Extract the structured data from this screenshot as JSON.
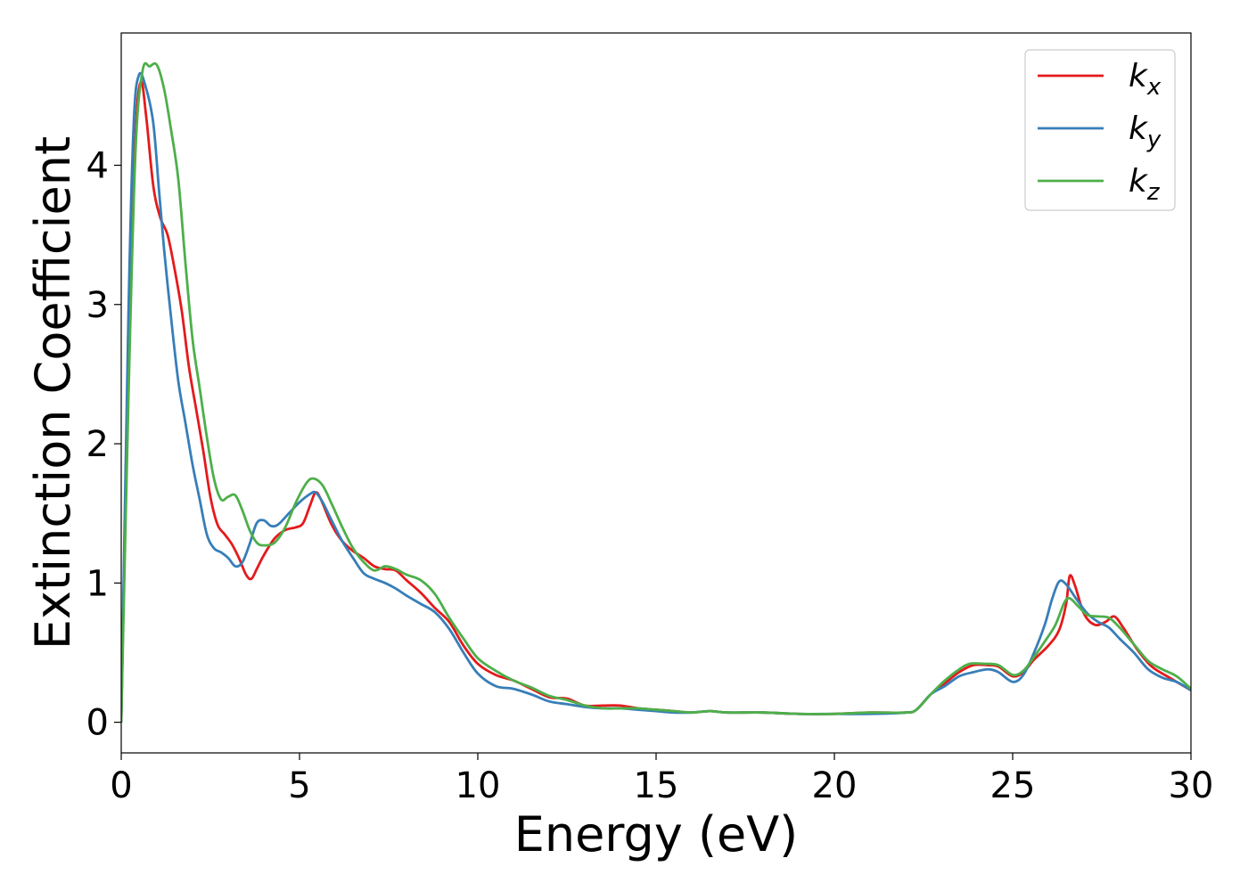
{
  "chart_data": {
    "type": "line",
    "title": "",
    "xlabel": "Energy (eV)",
    "ylabel": "Extinction Coefficient",
    "xlim": [
      0,
      30
    ],
    "ylim": [
      -0.22,
      4.95
    ],
    "xticks": [
      0,
      5,
      10,
      15,
      20,
      25,
      30
    ],
    "yticks": [
      0,
      1,
      2,
      3,
      4
    ],
    "grid": false,
    "legend_position": "top-right",
    "series": [
      {
        "name": "k_x",
        "label_base": "k",
        "label_sub": "x",
        "color": "#e41a1c",
        "points": [
          [
            0,
            0
          ],
          [
            0.2,
            2.6
          ],
          [
            0.4,
            4.2
          ],
          [
            0.55,
            4.6
          ],
          [
            0.7,
            4.35
          ],
          [
            0.9,
            3.85
          ],
          [
            1.1,
            3.62
          ],
          [
            1.3,
            3.5
          ],
          [
            1.5,
            3.25
          ],
          [
            1.7,
            2.95
          ],
          [
            1.9,
            2.55
          ],
          [
            2.1,
            2.25
          ],
          [
            2.3,
            1.95
          ],
          [
            2.5,
            1.62
          ],
          [
            2.7,
            1.42
          ],
          [
            2.9,
            1.35
          ],
          [
            3.1,
            1.28
          ],
          [
            3.3,
            1.18
          ],
          [
            3.5,
            1.06
          ],
          [
            3.65,
            1.03
          ],
          [
            3.8,
            1.1
          ],
          [
            4.0,
            1.2
          ],
          [
            4.3,
            1.32
          ],
          [
            4.6,
            1.38
          ],
          [
            4.9,
            1.4
          ],
          [
            5.1,
            1.43
          ],
          [
            5.3,
            1.56
          ],
          [
            5.45,
            1.65
          ],
          [
            5.6,
            1.6
          ],
          [
            5.9,
            1.42
          ],
          [
            6.2,
            1.3
          ],
          [
            6.5,
            1.23
          ],
          [
            6.8,
            1.18
          ],
          [
            7.1,
            1.12
          ],
          [
            7.4,
            1.1
          ],
          [
            7.7,
            1.09
          ],
          [
            8.0,
            1.02
          ],
          [
            8.4,
            0.93
          ],
          [
            8.8,
            0.82
          ],
          [
            9.2,
            0.72
          ],
          [
            9.6,
            0.55
          ],
          [
            10.0,
            0.42
          ],
          [
            10.5,
            0.34
          ],
          [
            11.0,
            0.3
          ],
          [
            11.5,
            0.24
          ],
          [
            12.0,
            0.18
          ],
          [
            12.5,
            0.17
          ],
          [
            13.0,
            0.12
          ],
          [
            13.5,
            0.12
          ],
          [
            14.0,
            0.12
          ],
          [
            14.5,
            0.1
          ],
          [
            15.0,
            0.09
          ],
          [
            15.5,
            0.08
          ],
          [
            16.0,
            0.07
          ],
          [
            16.5,
            0.08
          ],
          [
            17.0,
            0.07
          ],
          [
            18.0,
            0.07
          ],
          [
            19.0,
            0.06
          ],
          [
            20.0,
            0.06
          ],
          [
            21.0,
            0.07
          ],
          [
            22.0,
            0.07
          ],
          [
            22.3,
            0.09
          ],
          [
            22.7,
            0.2
          ],
          [
            23.1,
            0.28
          ],
          [
            23.5,
            0.36
          ],
          [
            23.9,
            0.41
          ],
          [
            24.3,
            0.41
          ],
          [
            24.6,
            0.4
          ],
          [
            25.0,
            0.33
          ],
          [
            25.3,
            0.36
          ],
          [
            25.6,
            0.45
          ],
          [
            26.0,
            0.55
          ],
          [
            26.3,
            0.66
          ],
          [
            26.5,
            0.85
          ],
          [
            26.6,
            1.05
          ],
          [
            26.75,
            0.98
          ],
          [
            27.0,
            0.78
          ],
          [
            27.3,
            0.7
          ],
          [
            27.6,
            0.72
          ],
          [
            27.85,
            0.76
          ],
          [
            28.1,
            0.68
          ],
          [
            28.5,
            0.52
          ],
          [
            28.9,
            0.4
          ],
          [
            29.4,
            0.32
          ],
          [
            30.0,
            0.23
          ]
        ]
      },
      {
        "name": "k_y",
        "label_base": "k",
        "label_sub": "y",
        "color": "#377eb8",
        "points": [
          [
            0,
            0
          ],
          [
            0.2,
            2.9
          ],
          [
            0.35,
            4.3
          ],
          [
            0.5,
            4.65
          ],
          [
            0.7,
            4.55
          ],
          [
            0.9,
            4.3
          ],
          [
            1.05,
            3.85
          ],
          [
            1.2,
            3.4
          ],
          [
            1.4,
            2.9
          ],
          [
            1.6,
            2.45
          ],
          [
            1.8,
            2.15
          ],
          [
            2.0,
            1.85
          ],
          [
            2.2,
            1.6
          ],
          [
            2.4,
            1.35
          ],
          [
            2.6,
            1.25
          ],
          [
            2.8,
            1.22
          ],
          [
            3.0,
            1.18
          ],
          [
            3.2,
            1.12
          ],
          [
            3.4,
            1.15
          ],
          [
            3.6,
            1.28
          ],
          [
            3.8,
            1.43
          ],
          [
            4.0,
            1.45
          ],
          [
            4.2,
            1.41
          ],
          [
            4.4,
            1.42
          ],
          [
            4.7,
            1.5
          ],
          [
            5.0,
            1.58
          ],
          [
            5.3,
            1.64
          ],
          [
            5.45,
            1.65
          ],
          [
            5.65,
            1.58
          ],
          [
            5.9,
            1.45
          ],
          [
            6.2,
            1.3
          ],
          [
            6.5,
            1.18
          ],
          [
            6.8,
            1.07
          ],
          [
            7.1,
            1.03
          ],
          [
            7.4,
            1.0
          ],
          [
            7.7,
            0.96
          ],
          [
            8.0,
            0.91
          ],
          [
            8.4,
            0.85
          ],
          [
            8.8,
            0.79
          ],
          [
            9.2,
            0.67
          ],
          [
            9.6,
            0.5
          ],
          [
            10.0,
            0.35
          ],
          [
            10.5,
            0.26
          ],
          [
            11.0,
            0.24
          ],
          [
            11.5,
            0.2
          ],
          [
            12.0,
            0.15
          ],
          [
            12.5,
            0.13
          ],
          [
            13.0,
            0.11
          ],
          [
            13.5,
            0.1
          ],
          [
            14.0,
            0.1
          ],
          [
            14.5,
            0.09
          ],
          [
            15.0,
            0.08
          ],
          [
            15.5,
            0.07
          ],
          [
            16.0,
            0.07
          ],
          [
            16.5,
            0.08
          ],
          [
            17.0,
            0.07
          ],
          [
            18.0,
            0.07
          ],
          [
            19.0,
            0.06
          ],
          [
            20.0,
            0.06
          ],
          [
            21.0,
            0.06
          ],
          [
            22.0,
            0.07
          ],
          [
            22.3,
            0.09
          ],
          [
            22.7,
            0.2
          ],
          [
            23.1,
            0.26
          ],
          [
            23.5,
            0.33
          ],
          [
            23.9,
            0.36
          ],
          [
            24.3,
            0.38
          ],
          [
            24.6,
            0.36
          ],
          [
            25.0,
            0.29
          ],
          [
            25.3,
            0.34
          ],
          [
            25.6,
            0.5
          ],
          [
            25.9,
            0.7
          ],
          [
            26.1,
            0.88
          ],
          [
            26.3,
            1.01
          ],
          [
            26.5,
            0.99
          ],
          [
            26.8,
            0.88
          ],
          [
            27.1,
            0.78
          ],
          [
            27.4,
            0.72
          ],
          [
            27.7,
            0.68
          ],
          [
            28.0,
            0.6
          ],
          [
            28.4,
            0.5
          ],
          [
            28.8,
            0.38
          ],
          [
            29.2,
            0.32
          ],
          [
            29.6,
            0.29
          ],
          [
            30.0,
            0.23
          ]
        ]
      },
      {
        "name": "k_z",
        "label_base": "k",
        "label_sub": "z",
        "color": "#4daf4a",
        "points": [
          [
            0,
            0
          ],
          [
            0.2,
            2.3
          ],
          [
            0.4,
            4.1
          ],
          [
            0.6,
            4.68
          ],
          [
            0.8,
            4.71
          ],
          [
            1.0,
            4.72
          ],
          [
            1.2,
            4.55
          ],
          [
            1.4,
            4.25
          ],
          [
            1.6,
            3.9
          ],
          [
            1.8,
            3.3
          ],
          [
            2.0,
            2.75
          ],
          [
            2.2,
            2.4
          ],
          [
            2.4,
            2.05
          ],
          [
            2.6,
            1.75
          ],
          [
            2.8,
            1.6
          ],
          [
            3.0,
            1.62
          ],
          [
            3.2,
            1.63
          ],
          [
            3.4,
            1.52
          ],
          [
            3.6,
            1.38
          ],
          [
            3.8,
            1.29
          ],
          [
            4.0,
            1.27
          ],
          [
            4.3,
            1.29
          ],
          [
            4.6,
            1.4
          ],
          [
            4.9,
            1.58
          ],
          [
            5.2,
            1.72
          ],
          [
            5.4,
            1.75
          ],
          [
            5.65,
            1.7
          ],
          [
            5.9,
            1.57
          ],
          [
            6.2,
            1.4
          ],
          [
            6.5,
            1.25
          ],
          [
            6.8,
            1.15
          ],
          [
            7.1,
            1.09
          ],
          [
            7.4,
            1.12
          ],
          [
            7.7,
            1.1
          ],
          [
            8.0,
            1.06
          ],
          [
            8.4,
            1.02
          ],
          [
            8.8,
            0.92
          ],
          [
            9.2,
            0.75
          ],
          [
            9.6,
            0.6
          ],
          [
            10.0,
            0.46
          ],
          [
            10.5,
            0.37
          ],
          [
            11.0,
            0.3
          ],
          [
            11.5,
            0.25
          ],
          [
            12.0,
            0.19
          ],
          [
            12.5,
            0.16
          ],
          [
            13.0,
            0.12
          ],
          [
            13.5,
            0.1
          ],
          [
            14.0,
            0.1
          ],
          [
            14.5,
            0.1
          ],
          [
            15.0,
            0.09
          ],
          [
            15.5,
            0.08
          ],
          [
            16.0,
            0.07
          ],
          [
            16.5,
            0.08
          ],
          [
            17.0,
            0.07
          ],
          [
            18.0,
            0.07
          ],
          [
            19.0,
            0.06
          ],
          [
            20.0,
            0.06
          ],
          [
            21.0,
            0.07
          ],
          [
            22.0,
            0.07
          ],
          [
            22.3,
            0.09
          ],
          [
            22.7,
            0.2
          ],
          [
            23.1,
            0.3
          ],
          [
            23.5,
            0.38
          ],
          [
            23.8,
            0.42
          ],
          [
            24.2,
            0.42
          ],
          [
            24.6,
            0.41
          ],
          [
            25.0,
            0.34
          ],
          [
            25.3,
            0.37
          ],
          [
            25.6,
            0.47
          ],
          [
            25.9,
            0.58
          ],
          [
            26.2,
            0.7
          ],
          [
            26.45,
            0.86
          ],
          [
            26.6,
            0.89
          ],
          [
            26.85,
            0.83
          ],
          [
            27.1,
            0.77
          ],
          [
            27.4,
            0.76
          ],
          [
            27.7,
            0.75
          ],
          [
            28.0,
            0.68
          ],
          [
            28.4,
            0.56
          ],
          [
            28.8,
            0.44
          ],
          [
            29.2,
            0.38
          ],
          [
            29.6,
            0.33
          ],
          [
            30.0,
            0.24
          ]
        ]
      }
    ]
  }
}
